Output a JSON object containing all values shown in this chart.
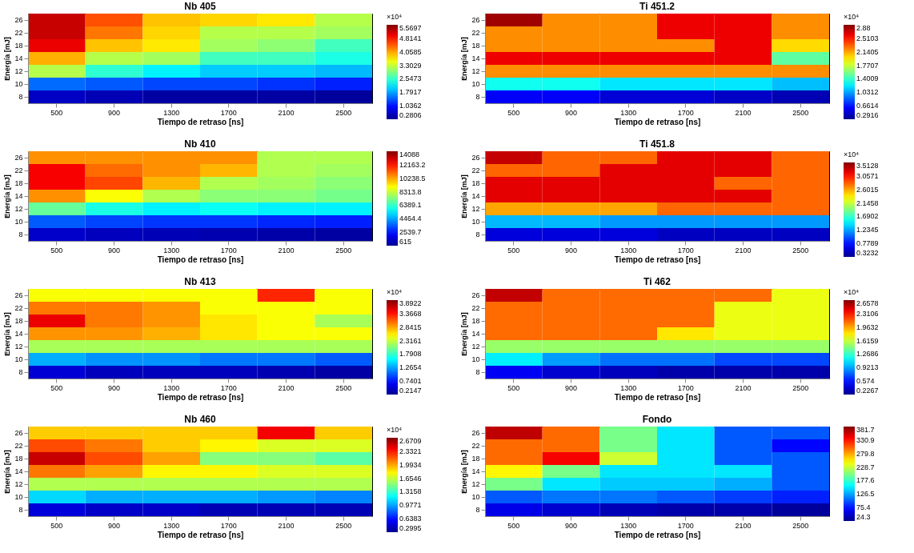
{
  "chart_data": [
    {
      "type": "heatmap",
      "title": "Nb 405",
      "xlabel": "Tiempo de retraso [ns]",
      "ylabel": "Energía [mJ]",
      "clabel": "×10⁴",
      "categories": [
        "500",
        "900",
        "1300",
        "1700",
        "2100",
        "2500"
      ],
      "y_categories": [
        "26",
        "22",
        "18",
        "14",
        "12",
        "10",
        "8"
      ],
      "clim": [
        0.2806,
        5.5697
      ],
      "cticks": [
        0.2806,
        1.0362,
        1.7917,
        2.5473,
        3.3029,
        4.0585,
        4.8141,
        5.5697
      ],
      "cells": [
        [
          5.2,
          4.5,
          3.9,
          3.8,
          3.7,
          3.2
        ],
        [
          5.2,
          4.3,
          3.8,
          3.2,
          3.2,
          3.1
        ],
        [
          5.0,
          3.9,
          3.7,
          3.1,
          3.0,
          2.6
        ],
        [
          4.0,
          3.2,
          3.1,
          2.6,
          2.6,
          2.4
        ],
        [
          3.2,
          2.5,
          2.2,
          2.0,
          2.0,
          1.9
        ],
        [
          1.5,
          1.4,
          1.3,
          1.3,
          1.2,
          1.1
        ],
        [
          0.6,
          0.5,
          0.4,
          0.4,
          0.4,
          0.35
        ]
      ]
    },
    {
      "type": "heatmap",
      "title": "Ti 451.2",
      "xlabel": "Tiempo de retraso [ns]",
      "ylabel": "Energía [mJ]",
      "clabel": "×10⁴",
      "categories": [
        "500",
        "900",
        "1300",
        "1700",
        "2100",
        "2500"
      ],
      "y_categories": [
        "26",
        "22",
        "18",
        "14",
        "12",
        "10",
        "8"
      ],
      "clim": [
        0.2916,
        2.88
      ],
      "cticks": [
        0.2916,
        0.6614,
        1.0312,
        1.4009,
        1.7707,
        2.1405,
        2.5103,
        2.88
      ],
      "cells": [
        [
          2.8,
          2.2,
          2.2,
          2.6,
          2.6,
          2.2
        ],
        [
          2.2,
          2.2,
          2.2,
          2.6,
          2.6,
          2.2
        ],
        [
          2.2,
          2.2,
          2.2,
          2.2,
          2.6,
          2.0
        ],
        [
          2.6,
          2.6,
          2.6,
          2.6,
          2.6,
          1.5
        ],
        [
          2.2,
          2.2,
          2.2,
          2.2,
          2.2,
          2.2
        ],
        [
          1.3,
          1.3,
          1.2,
          1.2,
          1.2,
          1.1
        ],
        [
          0.6,
          0.6,
          0.5,
          0.5,
          0.45,
          0.4
        ]
      ]
    },
    {
      "type": "heatmap",
      "title": "Nb 410",
      "xlabel": "Tiempo de retraso [ns]",
      "ylabel": "Energía [mJ]",
      "categories": [
        "500",
        "900",
        "1300",
        "1700",
        "2100",
        "2500"
      ],
      "y_categories": [
        "26",
        "22",
        "18",
        "14",
        "12",
        "10",
        "8"
      ],
      "clim": [
        615,
        14088
      ],
      "cticks": [
        615,
        2539.7,
        4464.4,
        6389.1,
        8313.8,
        10238.5,
        12163.2,
        14088
      ],
      "cells": [
        [
          10500,
          10500,
          10500,
          10500,
          8000,
          8000
        ],
        [
          12500,
          11000,
          10500,
          10000,
          8000,
          7800
        ],
        [
          12500,
          11500,
          10000,
          8000,
          7800,
          7500
        ],
        [
          10500,
          9000,
          8000,
          7500,
          7500,
          7200
        ],
        [
          7000,
          6000,
          5500,
          5800,
          5500,
          5500
        ],
        [
          3500,
          3200,
          3000,
          3000,
          2800,
          2700
        ],
        [
          1500,
          1300,
          1200,
          1100,
          1000,
          900
        ]
      ]
    },
    {
      "type": "heatmap",
      "title": "Ti 451.8",
      "xlabel": "Tiempo de retraso [ns]",
      "ylabel": "Energía [mJ]",
      "clabel": "×10⁴",
      "categories": [
        "500",
        "900",
        "1300",
        "1700",
        "2100",
        "2500"
      ],
      "y_categories": [
        "26",
        "22",
        "18",
        "14",
        "12",
        "10",
        "8"
      ],
      "clim": [
        0.3232,
        3.5128
      ],
      "cticks": [
        0.3232,
        0.7789,
        1.2345,
        1.6902,
        2.1458,
        2.6015,
        3.0571,
        3.5128
      ],
      "cells": [
        [
          3.3,
          2.8,
          2.8,
          3.2,
          3.2,
          2.8
        ],
        [
          2.8,
          2.8,
          3.2,
          3.2,
          3.2,
          2.8
        ],
        [
          3.2,
          3.2,
          3.2,
          3.2,
          2.8,
          2.8
        ],
        [
          3.2,
          3.2,
          3.2,
          3.2,
          3.2,
          2.8
        ],
        [
          2.6,
          2.6,
          2.6,
          2.8,
          2.8,
          2.8
        ],
        [
          1.3,
          1.3,
          1.2,
          1.2,
          1.2,
          1.2
        ],
        [
          0.6,
          0.6,
          0.6,
          0.5,
          0.5,
          0.5
        ]
      ]
    },
    {
      "type": "heatmap",
      "title": "Nb 413",
      "xlabel": "Tiempo de retraso [ns]",
      "ylabel": "Energía [mJ]",
      "clabel": "×10⁴",
      "categories": [
        "500",
        "900",
        "1300",
        "1700",
        "2100",
        "2500"
      ],
      "y_categories": [
        "26",
        "22",
        "18",
        "14",
        "12",
        "10",
        "8"
      ],
      "clim": [
        0.2147,
        3.8922
      ],
      "cticks": [
        0.2147,
        0.7401,
        1.2654,
        1.7908,
        2.3161,
        2.8415,
        3.3668,
        3.8922
      ],
      "cells": [
        [
          2.5,
          2.5,
          2.5,
          2.5,
          3.3,
          2.5
        ],
        [
          3.0,
          3.0,
          2.9,
          2.5,
          2.5,
          2.5
        ],
        [
          3.5,
          3.0,
          2.9,
          2.6,
          2.5,
          2.2
        ],
        [
          2.9,
          2.9,
          2.8,
          2.6,
          2.5,
          2.5
        ],
        [
          2.2,
          2.2,
          2.2,
          2.2,
          2.2,
          2.2
        ],
        [
          1.3,
          1.2,
          1.2,
          1.1,
          1.1,
          1.0
        ],
        [
          0.5,
          0.4,
          0.4,
          0.4,
          0.35,
          0.3
        ]
      ]
    },
    {
      "type": "heatmap",
      "title": "Ti 462",
      "xlabel": "Tiempo de retraso [ns]",
      "ylabel": "Energía [mJ]",
      "clabel": "×10⁴",
      "categories": [
        "500",
        "900",
        "1300",
        "1700",
        "2100",
        "2500"
      ],
      "y_categories": [
        "26",
        "22",
        "18",
        "14",
        "12",
        "10",
        "8"
      ],
      "clim": [
        0.2267,
        2.6578
      ],
      "cticks": [
        0.2267,
        0.574,
        0.9213,
        1.2686,
        1.6159,
        1.9632,
        2.3106,
        2.6578
      ],
      "cells": [
        [
          2.5,
          2.1,
          2.1,
          2.1,
          2.1,
          1.7
        ],
        [
          2.1,
          2.1,
          2.1,
          2.1,
          1.7,
          1.7
        ],
        [
          2.1,
          2.1,
          2.1,
          2.1,
          1.7,
          1.7
        ],
        [
          2.1,
          2.1,
          2.1,
          1.8,
          1.7,
          1.7
        ],
        [
          1.5,
          1.5,
          1.5,
          1.5,
          1.5,
          1.5
        ],
        [
          1.1,
          0.9,
          0.8,
          0.8,
          0.7,
          0.7
        ],
        [
          0.5,
          0.4,
          0.35,
          0.3,
          0.3,
          0.3
        ]
      ]
    },
    {
      "type": "heatmap",
      "title": "Nb 460",
      "xlabel": "Tiempo de retraso [ns]",
      "ylabel": "Energía [mJ]",
      "clabel": "×10⁴",
      "categories": [
        "500",
        "900",
        "1300",
        "1700",
        "2100",
        "2500"
      ],
      "y_categories": [
        "26",
        "22",
        "18",
        "14",
        "12",
        "10",
        "8"
      ],
      "clim": [
        0.2995,
        2.6709
      ],
      "cticks": [
        0.2995,
        0.6383,
        0.9771,
        1.3158,
        1.6546,
        1.9934,
        2.3321,
        2.6709
      ],
      "cells": [
        [
          1.9,
          1.9,
          1.9,
          1.9,
          2.4,
          1.9
        ],
        [
          2.2,
          2.1,
          1.9,
          1.8,
          1.7,
          1.7
        ],
        [
          2.5,
          2.2,
          2.0,
          1.5,
          1.5,
          1.4
        ],
        [
          2.1,
          2.0,
          1.8,
          1.8,
          1.7,
          1.7
        ],
        [
          1.6,
          1.6,
          1.6,
          1.6,
          1.6,
          1.6
        ],
        [
          1.1,
          1.0,
          1.0,
          1.0,
          0.95,
          0.9
        ],
        [
          0.5,
          0.45,
          0.45,
          0.4,
          0.4,
          0.4
        ]
      ]
    },
    {
      "type": "heatmap",
      "title": "Fondo",
      "xlabel": "Tiempo de retraso [ns]",
      "ylabel": "Energía [mJ]",
      "categories": [
        "500",
        "900",
        "1300",
        "1700",
        "2100",
        "2500"
      ],
      "y_categories": [
        "26",
        "22",
        "18",
        "14",
        "12",
        "10",
        "8"
      ],
      "clim": [
        24.3,
        381.7
      ],
      "cticks": [
        24.3,
        75.4,
        126.5,
        177.6,
        228.7,
        279.8,
        330.9,
        381.7
      ],
      "cells": [
        [
          360,
          300,
          200,
          150,
          100,
          100
        ],
        [
          300,
          300,
          200,
          150,
          100,
          70
        ],
        [
          300,
          340,
          230,
          150,
          100,
          100
        ],
        [
          250,
          200,
          150,
          150,
          150,
          100
        ],
        [
          200,
          150,
          140,
          140,
          130,
          100
        ],
        [
          100,
          110,
          110,
          100,
          90,
          80
        ],
        [
          60,
          50,
          40,
          35,
          35,
          30
        ]
      ]
    }
  ]
}
